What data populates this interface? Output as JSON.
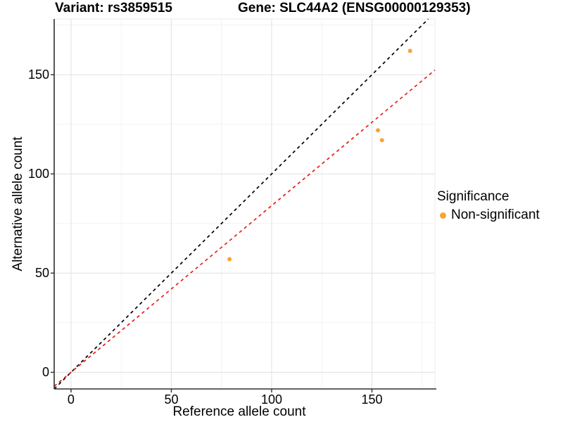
{
  "title": {
    "left": "Variant: rs3859515",
    "right": "Gene: SLC44A2 (ENSG00000129353)"
  },
  "chart_data": {
    "type": "scatter",
    "title_left": "Variant: rs3859515",
    "title_right": "Gene: SLC44A2 (ENSG00000129353)",
    "xlabel": "Reference allele count",
    "ylabel": "Alternative allele count",
    "xlim": [
      -8.4,
      181.4
    ],
    "ylim": [
      -8.4,
      178.1
    ],
    "x_ticks": [
      0,
      50,
      100,
      150
    ],
    "y_ticks": [
      0,
      50,
      100,
      150
    ],
    "x_minor_ticks": [
      25,
      75,
      125,
      175
    ],
    "y_minor_ticks": [
      25,
      75,
      125,
      175
    ],
    "grid": "on",
    "points": [
      {
        "ref": 79,
        "alt": 57,
        "significance": "Non-significant"
      },
      {
        "ref": 153,
        "alt": 122,
        "significance": "Non-significant"
      },
      {
        "ref": 155,
        "alt": 117,
        "significance": "Non-significant"
      },
      {
        "ref": 169,
        "alt": 162,
        "significance": "Non-significant"
      }
    ],
    "lines": [
      {
        "name": "identity-line",
        "slope": 1.0,
        "intercept": 0,
        "color": "#000000",
        "style": "dashed"
      },
      {
        "name": "expected-ratio-line",
        "slope": 0.84,
        "intercept": 0,
        "color": "#E41E1E",
        "style": "dashed"
      }
    ],
    "legend": {
      "position": "right",
      "title": "Significance",
      "items": [
        {
          "label": "Non-significant",
          "color": "#F9A334"
        }
      ]
    }
  },
  "colors": {
    "point": "#F9A334",
    "identity_line": "#000000",
    "ratio_line": "#E41E1E",
    "grid_major": "#E3E3E3",
    "grid_minor": "#F1F1F1",
    "panel_border": "#EBEBEB",
    "axis_line": "#2E2E2E",
    "text": "#000000"
  }
}
